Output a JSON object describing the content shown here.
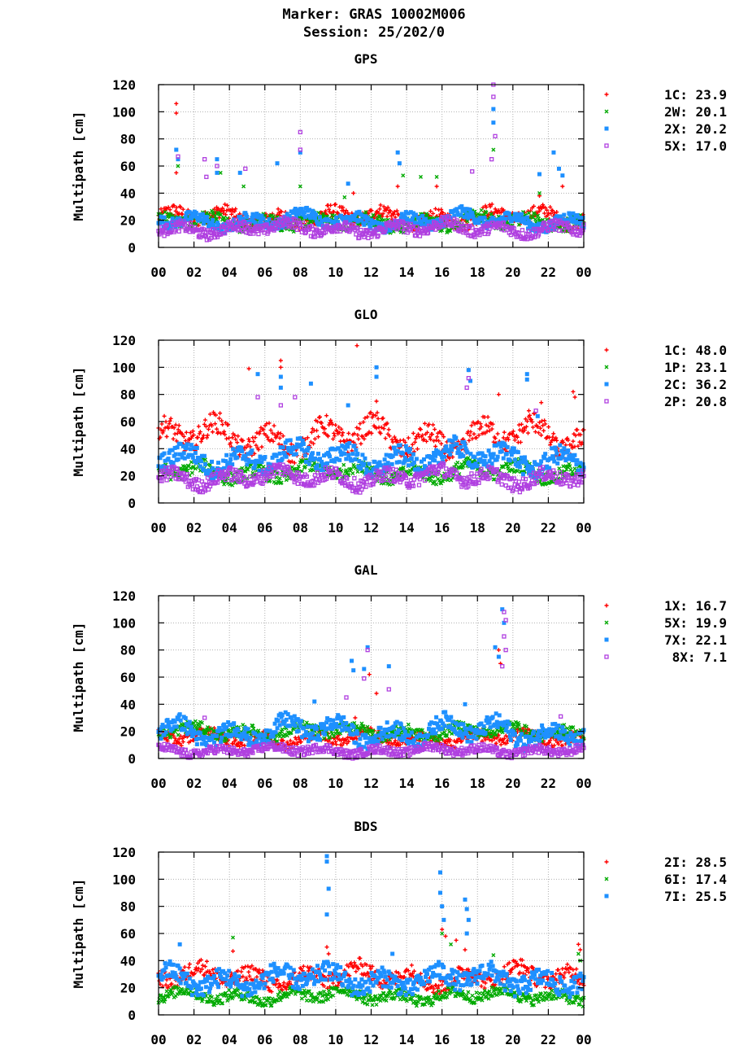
{
  "header": {
    "marker": "Marker: GRAS 10002M006",
    "session": "Session: 25/202/0"
  },
  "chart_data": [
    {
      "type": "scatter",
      "title": "GPS",
      "ylabel": "Multipath [cm]",
      "xticks": [
        "00",
        "02",
        "04",
        "06",
        "08",
        "10",
        "12",
        "14",
        "16",
        "18",
        "20",
        "22",
        "00"
      ],
      "x_range_hours": [
        0,
        24
      ],
      "ylim": [
        0,
        120
      ],
      "yticks": [
        0,
        20,
        40,
        60,
        80,
        100,
        120
      ],
      "grid": true,
      "legend_position": "right",
      "series": [
        {
          "name": "1C",
          "stat": "23.9",
          "color": "#ff0000",
          "marker": "plus",
          "band": {
            "base": 22,
            "amp": 4,
            "noise": 5
          },
          "spikes": [
            [
              1.0,
              106
            ],
            [
              1.0,
              99
            ],
            [
              1.0,
              55
            ],
            [
              11.0,
              40
            ],
            [
              13.5,
              45
            ],
            [
              15.7,
              45
            ],
            [
              21.5,
              38
            ],
            [
              22.8,
              45
            ]
          ]
        },
        {
          "name": "2W",
          "stat": "20.1",
          "color": "#00aa00",
          "marker": "cross",
          "band": {
            "base": 19,
            "amp": 3,
            "noise": 5
          },
          "spikes": [
            [
              1.1,
              60
            ],
            [
              3.5,
              55
            ],
            [
              4.8,
              45
            ],
            [
              8.0,
              45
            ],
            [
              10.5,
              37
            ],
            [
              13.8,
              53
            ],
            [
              14.8,
              52
            ],
            [
              15.7,
              52
            ],
            [
              18.9,
              72
            ],
            [
              21.5,
              40
            ]
          ]
        },
        {
          "name": "2X",
          "stat": "20.2",
          "color": "#1e90ff",
          "marker": "square",
          "band": {
            "base": 20,
            "amp": 4,
            "noise": 4
          },
          "spikes": [
            [
              1.0,
              72
            ],
            [
              1.1,
              65
            ],
            [
              3.3,
              65
            ],
            [
              3.3,
              55
            ],
            [
              4.6,
              55
            ],
            [
              6.7,
              62
            ],
            [
              8.0,
              70
            ],
            [
              10.7,
              47
            ],
            [
              13.5,
              70
            ],
            [
              13.6,
              62
            ],
            [
              18.9,
              102
            ],
            [
              18.9,
              92
            ],
            [
              21.5,
              54
            ],
            [
              22.3,
              70
            ],
            [
              22.6,
              58
            ],
            [
              22.8,
              53
            ]
          ]
        },
        {
          "name": "5X",
          "stat": "17.0",
          "color": "#b040e0",
          "marker": "opensquare",
          "band": {
            "base": 14,
            "amp": 3,
            "noise": 4
          },
          "spikes": [
            [
              1.1,
              67
            ],
            [
              2.6,
              65
            ],
            [
              2.7,
              52
            ],
            [
              3.3,
              60
            ],
            [
              4.9,
              58
            ],
            [
              8.0,
              85
            ],
            [
              8.0,
              72
            ],
            [
              17.7,
              56
            ],
            [
              18.9,
              120
            ],
            [
              18.9,
              111
            ],
            [
              19.0,
              82
            ],
            [
              18.8,
              65
            ]
          ]
        }
      ]
    },
    {
      "type": "scatter",
      "title": "GLO",
      "ylabel": "Multipath [cm]",
      "xticks": [
        "00",
        "02",
        "04",
        "06",
        "08",
        "10",
        "12",
        "14",
        "16",
        "18",
        "20",
        "22",
        "00"
      ],
      "x_range_hours": [
        0,
        24
      ],
      "ylim": [
        0,
        120
      ],
      "yticks": [
        0,
        20,
        40,
        60,
        80,
        100,
        120
      ],
      "grid": true,
      "legend_position": "right",
      "series": [
        {
          "name": "1C",
          "stat": "48.0",
          "color": "#ff0000",
          "marker": "plus",
          "band": {
            "base": 48,
            "amp": 8,
            "noise": 8
          },
          "spikes": [
            [
              5.1,
              99
            ],
            [
              6.9,
              105
            ],
            [
              6.9,
              100
            ],
            [
              11.2,
              116
            ],
            [
              12.3,
              75
            ],
            [
              17.5,
              98
            ],
            [
              19.2,
              80
            ],
            [
              20.9,
              68
            ],
            [
              21.6,
              74
            ],
            [
              23.4,
              82
            ],
            [
              23.5,
              78
            ]
          ]
        },
        {
          "name": "1P",
          "stat": "23.1",
          "color": "#00aa00",
          "marker": "cross",
          "band": {
            "base": 23,
            "amp": 4,
            "noise": 5
          },
          "spikes": []
        },
        {
          "name": "2C",
          "stat": "36.2",
          "color": "#1e90ff",
          "marker": "square",
          "band": {
            "base": 33,
            "amp": 6,
            "noise": 7
          },
          "spikes": [
            [
              5.6,
              95
            ],
            [
              6.9,
              93
            ],
            [
              6.9,
              85
            ],
            [
              8.6,
              88
            ],
            [
              10.7,
              72
            ],
            [
              12.3,
              100
            ],
            [
              12.3,
              93
            ],
            [
              17.5,
              98
            ],
            [
              17.6,
              90
            ],
            [
              20.8,
              95
            ],
            [
              20.8,
              91
            ],
            [
              21.4,
              64
            ]
          ]
        },
        {
          "name": "2P",
          "stat": "20.8",
          "color": "#b040e0",
          "marker": "opensquare",
          "band": {
            "base": 19,
            "amp": 4,
            "noise": 5
          },
          "spikes": [
            [
              5.6,
              78
            ],
            [
              6.9,
              72
            ],
            [
              7.7,
              78
            ],
            [
              17.5,
              92
            ],
            [
              17.4,
              85
            ],
            [
              21.3,
              68
            ]
          ]
        }
      ]
    },
    {
      "type": "scatter",
      "title": "GAL",
      "ylabel": "Multipath [cm]",
      "xticks": [
        "00",
        "02",
        "04",
        "06",
        "08",
        "10",
        "12",
        "14",
        "16",
        "18",
        "20",
        "22",
        "00"
      ],
      "x_range_hours": [
        0,
        24
      ],
      "ylim": [
        0,
        120
      ],
      "yticks": [
        0,
        20,
        40,
        60,
        80,
        100,
        120
      ],
      "grid": true,
      "legend_position": "right",
      "series": [
        {
          "name": "1X",
          "stat": "16.7",
          "color": "#ff0000",
          "marker": "plus",
          "band": {
            "base": 15,
            "amp": 3,
            "noise": 4
          },
          "spikes": [
            [
              11.1,
              30
            ],
            [
              11.9,
              62
            ],
            [
              12.3,
              48
            ],
            [
              19.2,
              80
            ],
            [
              19.3,
              70
            ],
            [
              7.0,
              27
            ]
          ]
        },
        {
          "name": "5X",
          "stat": "19.9",
          "color": "#00aa00",
          "marker": "cross",
          "band": {
            "base": 20,
            "amp": 3,
            "noise": 4
          },
          "spikes": []
        },
        {
          "name": "7X",
          "stat": "22.1",
          "color": "#1e90ff",
          "marker": "square",
          "band": {
            "base": 20,
            "amp": 6,
            "noise": 6
          },
          "spikes": [
            [
              10.9,
              72
            ],
            [
              11.0,
              65
            ],
            [
              11.8,
              82
            ],
            [
              11.6,
              66
            ],
            [
              13.0,
              68
            ],
            [
              19.0,
              82
            ],
            [
              19.2,
              75
            ],
            [
              19.4,
              110
            ],
            [
              19.5,
              100
            ],
            [
              8.8,
              42
            ],
            [
              17.3,
              40
            ]
          ]
        },
        {
          "name": "8X",
          "stat": "7.1",
          "color": "#b040e0",
          "marker": "opensquare",
          "band": {
            "base": 6,
            "amp": 2,
            "noise": 3
          },
          "spikes": [
            [
              11.6,
              59
            ],
            [
              11.8,
              80
            ],
            [
              13.0,
              51
            ],
            [
              19.5,
              108
            ],
            [
              19.6,
              102
            ],
            [
              19.5,
              90
            ],
            [
              19.6,
              80
            ],
            [
              19.4,
              68
            ],
            [
              10.6,
              45
            ],
            [
              2.6,
              30
            ],
            [
              22.7,
              31
            ]
          ]
        }
      ]
    },
    {
      "type": "scatter",
      "title": "BDS",
      "ylabel": "Multipath [cm]",
      "xticks": [
        "00",
        "02",
        "04",
        "06",
        "08",
        "10",
        "12",
        "14",
        "16",
        "18",
        "20",
        "22",
        "00"
      ],
      "x_range_hours": [
        0,
        24
      ],
      "ylim": [
        0,
        120
      ],
      "yticks": [
        0,
        20,
        40,
        60,
        80,
        100,
        120
      ],
      "grid": true,
      "legend_position": "right",
      "series": [
        {
          "name": "2I",
          "stat": "28.5",
          "color": "#ff0000",
          "marker": "plus",
          "band": {
            "base": 28,
            "amp": 5,
            "noise": 6
          },
          "spikes": [
            [
              4.2,
              47
            ],
            [
              9.5,
              50
            ],
            [
              9.6,
              45
            ],
            [
              16.0,
              63
            ],
            [
              16.2,
              58
            ],
            [
              16.8,
              55
            ],
            [
              17.3,
              48
            ],
            [
              23.7,
              52
            ],
            [
              23.8,
              48
            ]
          ]
        },
        {
          "name": "6I",
          "stat": "17.4",
          "color": "#00aa00",
          "marker": "cross",
          "band": {
            "base": 14,
            "amp": 3,
            "noise": 4
          },
          "spikes": [
            [
              4.2,
              57
            ],
            [
              16.0,
              60
            ],
            [
              16.5,
              52
            ],
            [
              18.9,
              44
            ],
            [
              23.7,
              45
            ],
            [
              23.8,
              40
            ]
          ]
        },
        {
          "name": "7I",
          "stat": "25.5",
          "color": "#1e90ff",
          "marker": "square",
          "band": {
            "base": 26,
            "amp": 5,
            "noise": 7
          },
          "spikes": [
            [
              9.5,
              117
            ],
            [
              9.5,
              113
            ],
            [
              9.6,
              93
            ],
            [
              9.5,
              74
            ],
            [
              15.9,
              105
            ],
            [
              15.9,
              90
            ],
            [
              16.0,
              80
            ],
            [
              16.1,
              70
            ],
            [
              17.3,
              85
            ],
            [
              17.4,
              78
            ],
            [
              17.5,
              70
            ],
            [
              17.4,
              60
            ],
            [
              13.2,
              45
            ],
            [
              1.2,
              52
            ]
          ]
        }
      ]
    }
  ]
}
